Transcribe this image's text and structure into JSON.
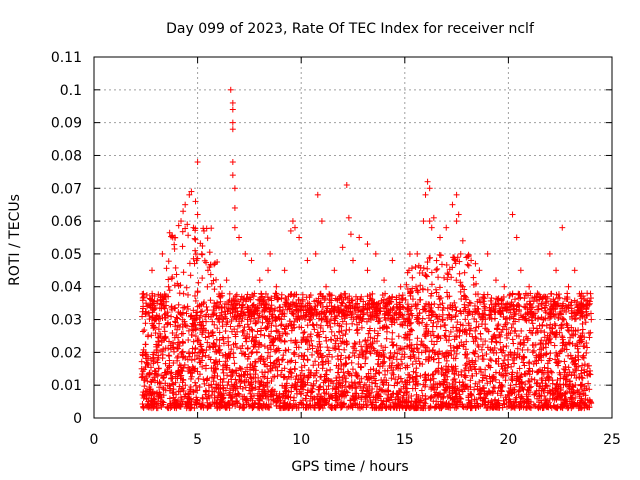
{
  "chart_data": {
    "type": "scatter",
    "title": "Day 099 of 2023, Rate Of TEC Index for receiver nclf",
    "xlabel": "GPS time / hours",
    "ylabel": "ROTI / TECUs",
    "xlim": [
      0,
      25
    ],
    "ylim": [
      0,
      0.11
    ],
    "xticks": [
      0,
      5,
      10,
      15,
      20,
      25
    ],
    "yticks": [
      0,
      0.01,
      0.02,
      0.03,
      0.04,
      0.05,
      0.06,
      0.07,
      0.08,
      0.09,
      0.1,
      0.11
    ],
    "ytick_labels": [
      "0",
      "0.01",
      "0.02",
      "0.03",
      "0.04",
      "0.05",
      "0.06",
      "0.07",
      "0.08",
      "0.09",
      "0.1",
      "0.11"
    ],
    "grid": true,
    "marker": "+",
    "color": "#ff0000",
    "series": [
      {
        "x": [
          2.3,
          2.5,
          2.8,
          3.0,
          3.3,
          3.6,
          3.9,
          4.2,
          4.4,
          4.6,
          4.8,
          5.0,
          5.2,
          5.5,
          5.8,
          6.1,
          6.4,
          6.6,
          6.7,
          6.7,
          6.7,
          6.7,
          6.7,
          6.7,
          6.8,
          6.8,
          6.8,
          7.0,
          7.3,
          7.6,
          8.0,
          8.4,
          8.8,
          9.2,
          9.6,
          9.7,
          9.9,
          10.3,
          10.7,
          10.8,
          11.2,
          11.6,
          12.0,
          12.2,
          12.3,
          12.4,
          12.5,
          12.8,
          13.2,
          13.6,
          14.0,
          14.4,
          14.8,
          15.2,
          15.6,
          15.9,
          16.0,
          16.1,
          16.2,
          16.4,
          16.7,
          17.0,
          17.3,
          17.5,
          17.6,
          17.8,
          18.2,
          18.6,
          19.0,
          19.4,
          19.8,
          20.2,
          20.4,
          20.6,
          21.0,
          21.4,
          21.8,
          22.0,
          22.3,
          22.6,
          22.9,
          23.2,
          23.5,
          23.8,
          24.0,
          4.7,
          4.9,
          5.0,
          4.3,
          4.5,
          3.8,
          16.2,
          16.3,
          17.5,
          17.7,
          13.2,
          11.0,
          9.5,
          8.5
        ],
        "y": [
          0.015,
          0.02,
          0.045,
          0.03,
          0.05,
          0.04,
          0.055,
          0.06,
          0.065,
          0.068,
          0.058,
          0.062,
          0.05,
          0.045,
          0.035,
          0.04,
          0.042,
          0.1,
          0.096,
          0.094,
          0.09,
          0.088,
          0.078,
          0.074,
          0.07,
          0.064,
          0.058,
          0.055,
          0.05,
          0.048,
          0.042,
          0.045,
          0.04,
          0.045,
          0.06,
          0.058,
          0.055,
          0.048,
          0.05,
          0.068,
          0.04,
          0.045,
          0.052,
          0.071,
          0.061,
          0.056,
          0.048,
          0.055,
          0.045,
          0.05,
          0.042,
          0.048,
          0.04,
          0.045,
          0.05,
          0.06,
          0.068,
          0.072,
          0.07,
          0.061,
          0.055,
          0.058,
          0.065,
          0.068,
          0.062,
          0.054,
          0.048,
          0.045,
          0.05,
          0.042,
          0.04,
          0.062,
          0.055,
          0.045,
          0.04,
          0.038,
          0.035,
          0.05,
          0.045,
          0.058,
          0.04,
          0.045,
          0.035,
          0.038,
          0.03,
          0.069,
          0.066,
          0.078,
          0.063,
          0.059,
          0.055,
          0.06,
          0.058,
          0.06,
          0.05,
          0.053,
          0.06,
          0.057,
          0.05
        ]
      }
    ],
    "dense_band": {
      "x_start": 2.3,
      "x_end": 24.0,
      "y_min": 0.003,
      "y_max": 0.035,
      "point_count": 3500
    }
  }
}
